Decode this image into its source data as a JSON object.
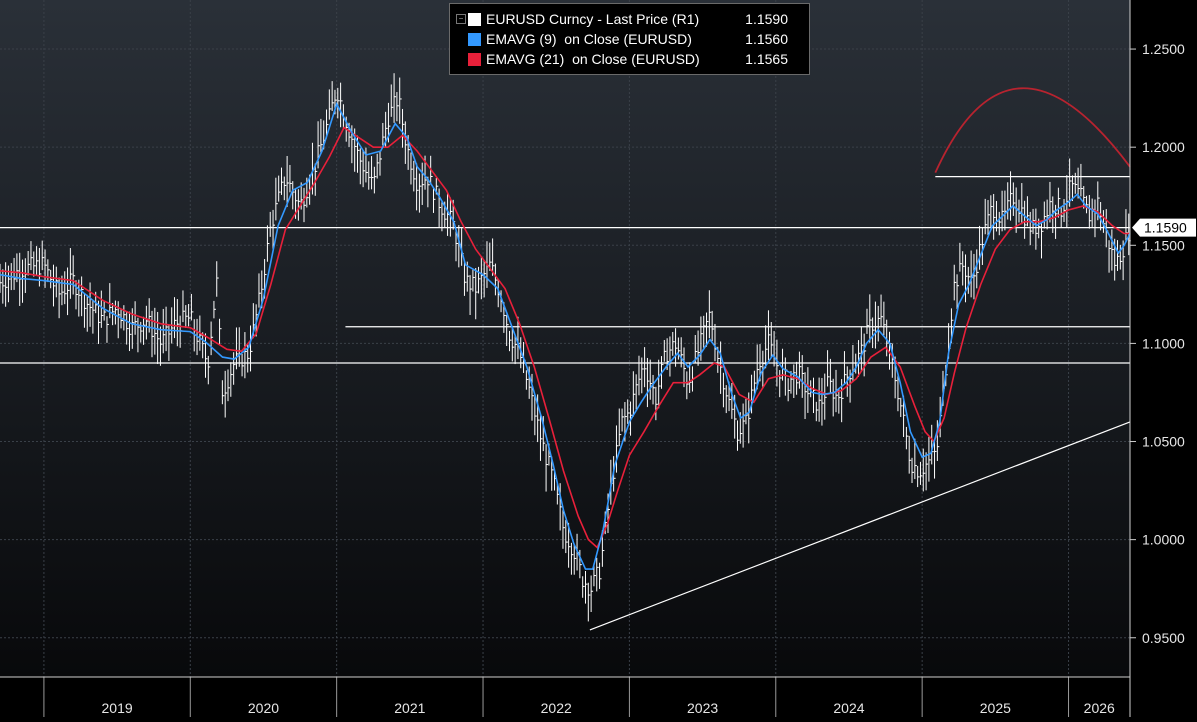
{
  "chart_data": {
    "type": "line",
    "title": "",
    "legend": {
      "placement": "top-center",
      "entries": [
        {
          "name": "EURUSD Curncy - Last Price (R1)",
          "value": "1.1590",
          "color": "#ffffff",
          "marker": "minus"
        },
        {
          "name": "EMAVG (9)  on Close (EURUSD)",
          "value": "1.1560",
          "color": "#3399ff"
        },
        {
          "name": "EMAVG (21)  on Close (EURUSD)",
          "value": "1.1565",
          "color": "#e8203a"
        }
      ]
    },
    "x_axis": {
      "labels": [
        "2019",
        "2020",
        "2021",
        "2022",
        "2023",
        "2024",
        "2025",
        "2026"
      ],
      "range": [
        2018.7,
        2026.42
      ]
    },
    "y_axis": {
      "position": "right",
      "range": [
        0.93,
        1.275
      ],
      "ticks": [
        "1.2500",
        "1.2000",
        "1.1500",
        "1.1000",
        "1.0500",
        "1.0000",
        "0.9500"
      ]
    },
    "grid": true,
    "last_price_label": "1.1590",
    "series": [
      {
        "name": "EURUSD Curncy - Last Price (R1)",
        "color": "#ffffff",
        "style": "weekly high-low bars",
        "points": [
          [
            2018.7,
            1.131
          ],
          [
            2018.85,
            1.138
          ],
          [
            2019.0,
            1.14
          ],
          [
            2019.1,
            1.125
          ],
          [
            2019.2,
            1.132
          ],
          [
            2019.3,
            1.12
          ],
          [
            2019.4,
            1.112
          ],
          [
            2019.5,
            1.118
          ],
          [
            2019.6,
            1.108
          ],
          [
            2019.7,
            1.112
          ],
          [
            2019.8,
            1.1
          ],
          [
            2019.9,
            1.11
          ],
          [
            2020.0,
            1.113
          ],
          [
            2020.05,
            1.103
          ],
          [
            2020.12,
            1.09
          ],
          [
            2020.18,
            1.132
          ],
          [
            2020.22,
            1.075
          ],
          [
            2020.3,
            1.09
          ],
          [
            2020.4,
            1.095
          ],
          [
            2020.48,
            1.125
          ],
          [
            2020.55,
            1.16
          ],
          [
            2020.65,
            1.185
          ],
          [
            2020.75,
            1.17
          ],
          [
            2020.85,
            1.19
          ],
          [
            2020.95,
            1.215
          ],
          [
            2021.0,
            1.23
          ],
          [
            2021.08,
            1.21
          ],
          [
            2021.15,
            1.195
          ],
          [
            2021.25,
            1.18
          ],
          [
            2021.35,
            1.215
          ],
          [
            2021.42,
            1.225
          ],
          [
            2021.48,
            1.2
          ],
          [
            2021.55,
            1.182
          ],
          [
            2021.62,
            1.185
          ],
          [
            2021.7,
            1.172
          ],
          [
            2021.8,
            1.16
          ],
          [
            2021.88,
            1.132
          ],
          [
            2021.95,
            1.128
          ],
          [
            2022.05,
            1.14
          ],
          [
            2022.12,
            1.125
          ],
          [
            2022.18,
            1.105
          ],
          [
            2022.25,
            1.095
          ],
          [
            2022.32,
            1.075
          ],
          [
            2022.4,
            1.05
          ],
          [
            2022.48,
            1.03
          ],
          [
            2022.55,
            1.005
          ],
          [
            2022.62,
            0.995
          ],
          [
            2022.68,
            0.98
          ],
          [
            2022.74,
            0.975
          ],
          [
            2022.8,
            0.985
          ],
          [
            2022.88,
            1.03
          ],
          [
            2022.95,
            1.06
          ],
          [
            2023.0,
            1.065
          ],
          [
            2023.05,
            1.078
          ],
          [
            2023.1,
            1.09
          ],
          [
            2023.18,
            1.072
          ],
          [
            2023.25,
            1.095
          ],
          [
            2023.32,
            1.1
          ],
          [
            2023.4,
            1.08
          ],
          [
            2023.48,
            1.098
          ],
          [
            2023.55,
            1.115
          ],
          [
            2023.6,
            1.095
          ],
          [
            2023.68,
            1.07
          ],
          [
            2023.74,
            1.055
          ],
          [
            2023.8,
            1.06
          ],
          [
            2023.88,
            1.09
          ],
          [
            2023.95,
            1.1
          ],
          [
            2024.0,
            1.09
          ],
          [
            2024.08,
            1.08
          ],
          [
            2024.15,
            1.085
          ],
          [
            2024.22,
            1.075
          ],
          [
            2024.3,
            1.068
          ],
          [
            2024.36,
            1.08
          ],
          [
            2024.42,
            1.072
          ],
          [
            2024.5,
            1.085
          ],
          [
            2024.58,
            1.095
          ],
          [
            2024.65,
            1.11
          ],
          [
            2024.72,
            1.112
          ],
          [
            2024.78,
            1.095
          ],
          [
            2024.85,
            1.07
          ],
          [
            2024.92,
            1.04
          ],
          [
            2024.98,
            1.035
          ],
          [
            2025.05,
            1.04
          ],
          [
            2025.1,
            1.045
          ],
          [
            2025.15,
            1.08
          ],
          [
            2025.22,
            1.13
          ],
          [
            2025.28,
            1.14
          ],
          [
            2025.34,
            1.13
          ],
          [
            2025.4,
            1.15
          ],
          [
            2025.48,
            1.17
          ],
          [
            2025.55,
            1.162
          ],
          [
            2025.62,
            1.175
          ],
          [
            2025.68,
            1.168
          ],
          [
            2025.75,
            1.158
          ],
          [
            2025.82,
            1.162
          ],
          [
            2025.88,
            1.172
          ],
          [
            2025.95,
            1.168
          ],
          [
            2026.02,
            1.18
          ],
          [
            2026.08,
            1.175
          ],
          [
            2026.14,
            1.165
          ],
          [
            2026.2,
            1.172
          ],
          [
            2026.26,
            1.155
          ],
          [
            2026.32,
            1.14
          ],
          [
            2026.38,
            1.15
          ],
          [
            2026.42,
            1.159
          ]
        ]
      },
      {
        "name": "EMAVG (9)  on Close (EURUSD)",
        "color": "#3399ff",
        "points": [
          [
            2018.7,
            1.135
          ],
          [
            2018.85,
            1.133
          ],
          [
            2019.0,
            1.132
          ],
          [
            2019.2,
            1.13
          ],
          [
            2019.4,
            1.118
          ],
          [
            2019.6,
            1.11
          ],
          [
            2019.8,
            1.107
          ],
          [
            2020.0,
            1.106
          ],
          [
            2020.1,
            1.101
          ],
          [
            2020.22,
            1.093
          ],
          [
            2020.3,
            1.092
          ],
          [
            2020.4,
            1.098
          ],
          [
            2020.5,
            1.123
          ],
          [
            2020.6,
            1.16
          ],
          [
            2020.7,
            1.178
          ],
          [
            2020.8,
            1.182
          ],
          [
            2020.9,
            1.198
          ],
          [
            2021.0,
            1.222
          ],
          [
            2021.1,
            1.208
          ],
          [
            2021.2,
            1.196
          ],
          [
            2021.3,
            1.198
          ],
          [
            2021.4,
            1.212
          ],
          [
            2021.48,
            1.205
          ],
          [
            2021.55,
            1.19
          ],
          [
            2021.62,
            1.184
          ],
          [
            2021.7,
            1.175
          ],
          [
            2021.8,
            1.162
          ],
          [
            2021.88,
            1.14
          ],
          [
            2022.0,
            1.135
          ],
          [
            2022.1,
            1.128
          ],
          [
            2022.2,
            1.108
          ],
          [
            2022.3,
            1.088
          ],
          [
            2022.4,
            1.062
          ],
          [
            2022.48,
            1.038
          ],
          [
            2022.55,
            1.015
          ],
          [
            2022.62,
            0.998
          ],
          [
            2022.7,
            0.985
          ],
          [
            2022.75,
            0.985
          ],
          [
            2022.82,
            1.005
          ],
          [
            2022.9,
            1.038
          ],
          [
            2023.0,
            1.06
          ],
          [
            2023.08,
            1.07
          ],
          [
            2023.15,
            1.078
          ],
          [
            2023.25,
            1.088
          ],
          [
            2023.33,
            1.095
          ],
          [
            2023.4,
            1.088
          ],
          [
            2023.48,
            1.094
          ],
          [
            2023.55,
            1.102
          ],
          [
            2023.62,
            1.095
          ],
          [
            2023.7,
            1.074
          ],
          [
            2023.76,
            1.062
          ],
          [
            2023.82,
            1.065
          ],
          [
            2023.9,
            1.085
          ],
          [
            2023.98,
            1.094
          ],
          [
            2024.05,
            1.087
          ],
          [
            2024.15,
            1.083
          ],
          [
            2024.25,
            1.075
          ],
          [
            2024.32,
            1.074
          ],
          [
            2024.4,
            1.075
          ],
          [
            2024.48,
            1.08
          ],
          [
            2024.55,
            1.088
          ],
          [
            2024.62,
            1.1
          ],
          [
            2024.7,
            1.107
          ],
          [
            2024.78,
            1.1
          ],
          [
            2024.85,
            1.08
          ],
          [
            2024.92,
            1.055
          ],
          [
            2025.0,
            1.042
          ],
          [
            2025.06,
            1.044
          ],
          [
            2025.12,
            1.06
          ],
          [
            2025.18,
            1.095
          ],
          [
            2025.25,
            1.12
          ],
          [
            2025.32,
            1.13
          ],
          [
            2025.4,
            1.145
          ],
          [
            2025.48,
            1.16
          ],
          [
            2025.55,
            1.165
          ],
          [
            2025.62,
            1.17
          ],
          [
            2025.7,
            1.165
          ],
          [
            2025.78,
            1.16
          ],
          [
            2025.85,
            1.163
          ],
          [
            2025.92,
            1.168
          ],
          [
            2026.0,
            1.172
          ],
          [
            2026.06,
            1.176
          ],
          [
            2026.12,
            1.17
          ],
          [
            2026.2,
            1.166
          ],
          [
            2026.28,
            1.155
          ],
          [
            2026.34,
            1.146
          ],
          [
            2026.38,
            1.15
          ],
          [
            2026.42,
            1.156
          ]
        ]
      },
      {
        "name": "EMAVG (21)  on Close (EURUSD)",
        "color": "#e8203a",
        "points": [
          [
            2018.7,
            1.137
          ],
          [
            2018.85,
            1.136
          ],
          [
            2019.0,
            1.134
          ],
          [
            2019.2,
            1.132
          ],
          [
            2019.4,
            1.122
          ],
          [
            2019.6,
            1.115
          ],
          [
            2019.8,
            1.11
          ],
          [
            2020.0,
            1.108
          ],
          [
            2020.12,
            1.103
          ],
          [
            2020.25,
            1.097
          ],
          [
            2020.35,
            1.096
          ],
          [
            2020.45,
            1.105
          ],
          [
            2020.55,
            1.13
          ],
          [
            2020.65,
            1.158
          ],
          [
            2020.75,
            1.17
          ],
          [
            2020.85,
            1.182
          ],
          [
            2020.95,
            1.195
          ],
          [
            2021.05,
            1.21
          ],
          [
            2021.15,
            1.205
          ],
          [
            2021.25,
            1.2
          ],
          [
            2021.35,
            1.2
          ],
          [
            2021.45,
            1.206
          ],
          [
            2021.55,
            1.198
          ],
          [
            2021.65,
            1.188
          ],
          [
            2021.75,
            1.178
          ],
          [
            2021.85,
            1.162
          ],
          [
            2021.95,
            1.148
          ],
          [
            2022.05,
            1.138
          ],
          [
            2022.15,
            1.128
          ],
          [
            2022.25,
            1.11
          ],
          [
            2022.35,
            1.088
          ],
          [
            2022.45,
            1.062
          ],
          [
            2022.55,
            1.035
          ],
          [
            2022.65,
            1.012
          ],
          [
            2022.72,
            1.0
          ],
          [
            2022.78,
            0.996
          ],
          [
            2022.85,
            1.008
          ],
          [
            2022.92,
            1.025
          ],
          [
            2023.0,
            1.043
          ],
          [
            2023.1,
            1.055
          ],
          [
            2023.2,
            1.068
          ],
          [
            2023.3,
            1.08
          ],
          [
            2023.4,
            1.08
          ],
          [
            2023.48,
            1.084
          ],
          [
            2023.58,
            1.09
          ],
          [
            2023.65,
            1.088
          ],
          [
            2023.75,
            1.074
          ],
          [
            2023.85,
            1.07
          ],
          [
            2023.95,
            1.082
          ],
          [
            2024.05,
            1.084
          ],
          [
            2024.15,
            1.082
          ],
          [
            2024.25,
            1.077
          ],
          [
            2024.35,
            1.074
          ],
          [
            2024.45,
            1.076
          ],
          [
            2024.55,
            1.082
          ],
          [
            2024.65,
            1.093
          ],
          [
            2024.75,
            1.098
          ],
          [
            2024.85,
            1.088
          ],
          [
            2024.95,
            1.068
          ],
          [
            2025.02,
            1.055
          ],
          [
            2025.08,
            1.05
          ],
          [
            2025.15,
            1.062
          ],
          [
            2025.22,
            1.085
          ],
          [
            2025.3,
            1.108
          ],
          [
            2025.4,
            1.13
          ],
          [
            2025.5,
            1.148
          ],
          [
            2025.6,
            1.158
          ],
          [
            2025.7,
            1.162
          ],
          [
            2025.8,
            1.162
          ],
          [
            2025.9,
            1.164
          ],
          [
            2026.0,
            1.168
          ],
          [
            2026.1,
            1.17
          ],
          [
            2026.2,
            1.167
          ],
          [
            2026.3,
            1.16
          ],
          [
            2026.38,
            1.156
          ],
          [
            2026.42,
            1.156
          ]
        ]
      }
    ],
    "annotations": {
      "horizontal_lines": [
        {
          "y": 1.159,
          "from": 2018.7,
          "to": 2026.42
        },
        {
          "y": 1.09,
          "from": 2018.7,
          "to": 2026.42
        },
        {
          "y": 1.1085,
          "from": 2021.06,
          "to": 2026.42
        },
        {
          "y": 1.185,
          "from": 2025.09,
          "to": 2026.42
        }
      ],
      "trendline": {
        "from": [
          2022.73,
          0.954
        ],
        "to": [
          2026.42,
          1.06
        ],
        "color": "#ffffff"
      },
      "arc": {
        "from": [
          2025.09,
          1.187
        ],
        "peak": [
          2025.68,
          1.23
        ],
        "to": [
          2026.42,
          1.19
        ],
        "color": "#b8232f"
      }
    }
  }
}
